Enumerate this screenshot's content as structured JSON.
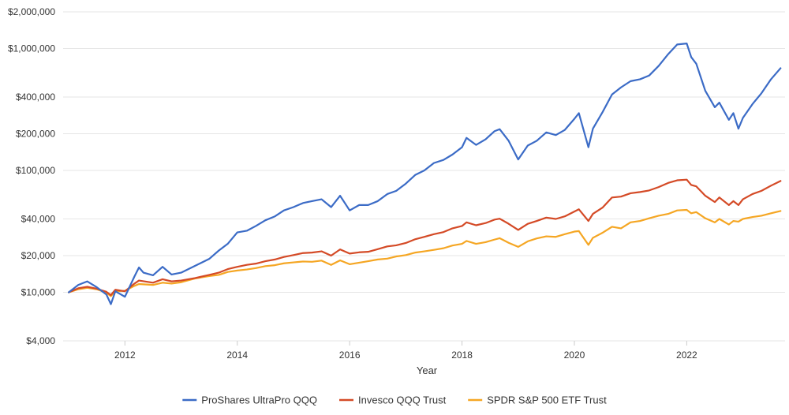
{
  "chart_data": {
    "type": "line",
    "title": "",
    "xlabel": "Year",
    "ylabel": "",
    "y_scale": "log",
    "ylim": [
      4000,
      2000000
    ],
    "xlim": [
      2010.9,
      2023.75
    ],
    "grid": {
      "horizontal": true,
      "vertical": false
    },
    "legend_placement": "bottom",
    "y_ticks": [
      {
        "value": 4000,
        "label": "$4,000"
      },
      {
        "value": 10000,
        "label": "$10,000"
      },
      {
        "value": 20000,
        "label": "$20,000"
      },
      {
        "value": 40000,
        "label": "$40,000"
      },
      {
        "value": 100000,
        "label": "$100,000"
      },
      {
        "value": 200000,
        "label": "$200,000"
      },
      {
        "value": 400000,
        "label": "$400,000"
      },
      {
        "value": 1000000,
        "label": "$1,000,000"
      },
      {
        "value": 2000000,
        "label": "$2,000,000"
      }
    ],
    "x_ticks": [
      {
        "value": 2012,
        "label": "2012"
      },
      {
        "value": 2014,
        "label": "2014"
      },
      {
        "value": 2016,
        "label": "2016"
      },
      {
        "value": 2018,
        "label": "2018"
      },
      {
        "value": 2020,
        "label": "2020"
      },
      {
        "value": 2022,
        "label": "2022"
      }
    ],
    "series": [
      {
        "name": "ProShares UltraPro QQQ",
        "color": "#3b6bc6",
        "points": [
          [
            2011.0,
            10000
          ],
          [
            2011.17,
            11500
          ],
          [
            2011.33,
            12300
          ],
          [
            2011.5,
            11000
          ],
          [
            2011.67,
            9600
          ],
          [
            2011.75,
            8000
          ],
          [
            2011.83,
            10200
          ],
          [
            2012.0,
            9200
          ],
          [
            2012.17,
            13500
          ],
          [
            2012.25,
            16000
          ],
          [
            2012.33,
            14500
          ],
          [
            2012.5,
            13800
          ],
          [
            2012.67,
            16200
          ],
          [
            2012.83,
            14000
          ],
          [
            2013.0,
            14500
          ],
          [
            2013.25,
            16500
          ],
          [
            2013.5,
            18800
          ],
          [
            2013.67,
            22000
          ],
          [
            2013.83,
            25000
          ],
          [
            2014.0,
            31000
          ],
          [
            2014.17,
            32000
          ],
          [
            2014.33,
            35000
          ],
          [
            2014.5,
            39000
          ],
          [
            2014.67,
            42000
          ],
          [
            2014.83,
            47000
          ],
          [
            2015.0,
            50000
          ],
          [
            2015.17,
            54000
          ],
          [
            2015.33,
            56000
          ],
          [
            2015.5,
            58000
          ],
          [
            2015.67,
            50000
          ],
          [
            2015.83,
            62000
          ],
          [
            2016.0,
            47000
          ],
          [
            2016.17,
            52000
          ],
          [
            2016.33,
            52000
          ],
          [
            2016.5,
            56000
          ],
          [
            2016.67,
            64000
          ],
          [
            2016.83,
            68000
          ],
          [
            2017.0,
            78000
          ],
          [
            2017.17,
            92000
          ],
          [
            2017.33,
            100000
          ],
          [
            2017.5,
            115000
          ],
          [
            2017.67,
            122000
          ],
          [
            2017.83,
            135000
          ],
          [
            2018.0,
            155000
          ],
          [
            2018.08,
            185000
          ],
          [
            2018.25,
            162000
          ],
          [
            2018.42,
            180000
          ],
          [
            2018.58,
            210000
          ],
          [
            2018.67,
            218000
          ],
          [
            2018.83,
            175000
          ],
          [
            2019.0,
            123000
          ],
          [
            2019.17,
            160000
          ],
          [
            2019.33,
            175000
          ],
          [
            2019.5,
            205000
          ],
          [
            2019.67,
            195000
          ],
          [
            2019.83,
            215000
          ],
          [
            2020.0,
            265000
          ],
          [
            2020.08,
            295000
          ],
          [
            2020.25,
            155000
          ],
          [
            2020.33,
            220000
          ],
          [
            2020.5,
            300000
          ],
          [
            2020.67,
            420000
          ],
          [
            2020.83,
            480000
          ],
          [
            2021.0,
            540000
          ],
          [
            2021.17,
            560000
          ],
          [
            2021.33,
            600000
          ],
          [
            2021.5,
            720000
          ],
          [
            2021.67,
            900000
          ],
          [
            2021.83,
            1080000
          ],
          [
            2022.0,
            1100000
          ],
          [
            2022.08,
            850000
          ],
          [
            2022.17,
            750000
          ],
          [
            2022.33,
            450000
          ],
          [
            2022.5,
            330000
          ],
          [
            2022.58,
            360000
          ],
          [
            2022.75,
            260000
          ],
          [
            2022.83,
            295000
          ],
          [
            2022.92,
            220000
          ],
          [
            2023.0,
            270000
          ],
          [
            2023.17,
            350000
          ],
          [
            2023.33,
            430000
          ],
          [
            2023.5,
            560000
          ],
          [
            2023.67,
            690000
          ]
        ]
      },
      {
        "name": "Invesco QQQ Trust",
        "color": "#d44a26",
        "points": [
          [
            2011.0,
            10000
          ],
          [
            2011.17,
            10800
          ],
          [
            2011.33,
            11100
          ],
          [
            2011.5,
            10700
          ],
          [
            2011.67,
            10100
          ],
          [
            2011.75,
            9500
          ],
          [
            2011.83,
            10500
          ],
          [
            2012.0,
            10200
          ],
          [
            2012.17,
            11800
          ],
          [
            2012.25,
            12500
          ],
          [
            2012.5,
            12000
          ],
          [
            2012.67,
            12800
          ],
          [
            2012.83,
            12300
          ],
          [
            2013.0,
            12500
          ],
          [
            2013.25,
            13100
          ],
          [
            2013.5,
            13900
          ],
          [
            2013.67,
            14500
          ],
          [
            2013.83,
            15500
          ],
          [
            2014.0,
            16200
          ],
          [
            2014.17,
            16800
          ],
          [
            2014.33,
            17200
          ],
          [
            2014.5,
            18000
          ],
          [
            2014.67,
            18600
          ],
          [
            2014.83,
            19500
          ],
          [
            2015.0,
            20200
          ],
          [
            2015.17,
            21000
          ],
          [
            2015.33,
            21200
          ],
          [
            2015.5,
            21700
          ],
          [
            2015.67,
            20000
          ],
          [
            2015.83,
            22500
          ],
          [
            2016.0,
            20800
          ],
          [
            2016.17,
            21300
          ],
          [
            2016.33,
            21500
          ],
          [
            2016.5,
            22600
          ],
          [
            2016.67,
            23800
          ],
          [
            2016.83,
            24300
          ],
          [
            2017.0,
            25400
          ],
          [
            2017.17,
            27300
          ],
          [
            2017.33,
            28500
          ],
          [
            2017.5,
            30000
          ],
          [
            2017.67,
            31200
          ],
          [
            2017.83,
            33500
          ],
          [
            2018.0,
            35000
          ],
          [
            2018.08,
            37500
          ],
          [
            2018.25,
            35500
          ],
          [
            2018.42,
            37000
          ],
          [
            2018.58,
            39500
          ],
          [
            2018.67,
            40200
          ],
          [
            2018.83,
            36500
          ],
          [
            2019.0,
            32500
          ],
          [
            2019.17,
            36500
          ],
          [
            2019.33,
            38500
          ],
          [
            2019.5,
            41000
          ],
          [
            2019.67,
            40000
          ],
          [
            2019.83,
            42000
          ],
          [
            2020.0,
            46000
          ],
          [
            2020.08,
            48000
          ],
          [
            2020.25,
            38500
          ],
          [
            2020.33,
            44000
          ],
          [
            2020.5,
            49500
          ],
          [
            2020.67,
            60000
          ],
          [
            2020.83,
            61000
          ],
          [
            2021.0,
            65000
          ],
          [
            2021.17,
            66500
          ],
          [
            2021.33,
            68500
          ],
          [
            2021.5,
            73000
          ],
          [
            2021.67,
            79000
          ],
          [
            2021.83,
            83000
          ],
          [
            2022.0,
            84000
          ],
          [
            2022.08,
            76000
          ],
          [
            2022.17,
            74000
          ],
          [
            2022.33,
            62000
          ],
          [
            2022.5,
            55000
          ],
          [
            2022.58,
            60000
          ],
          [
            2022.75,
            52000
          ],
          [
            2022.83,
            56000
          ],
          [
            2022.92,
            52000
          ],
          [
            2023.0,
            58000
          ],
          [
            2023.17,
            64000
          ],
          [
            2023.33,
            68000
          ],
          [
            2023.5,
            75000
          ],
          [
            2023.67,
            82000
          ]
        ]
      },
      {
        "name": "SPDR S&P 500 ETF Trust",
        "color": "#f5a623",
        "points": [
          [
            2011.0,
            10000
          ],
          [
            2011.17,
            10600
          ],
          [
            2011.33,
            10900
          ],
          [
            2011.5,
            10600
          ],
          [
            2011.67,
            9900
          ],
          [
            2011.75,
            9300
          ],
          [
            2011.83,
            10200
          ],
          [
            2012.0,
            10300
          ],
          [
            2012.17,
            11300
          ],
          [
            2012.25,
            11700
          ],
          [
            2012.5,
            11500
          ],
          [
            2012.67,
            12000
          ],
          [
            2012.83,
            11800
          ],
          [
            2013.0,
            12100
          ],
          [
            2013.25,
            13000
          ],
          [
            2013.5,
            13600
          ],
          [
            2013.67,
            13900
          ],
          [
            2013.83,
            14700
          ],
          [
            2014.0,
            15100
          ],
          [
            2014.17,
            15400
          ],
          [
            2014.33,
            15800
          ],
          [
            2014.5,
            16400
          ],
          [
            2014.67,
            16700
          ],
          [
            2014.83,
            17300
          ],
          [
            2015.0,
            17600
          ],
          [
            2015.17,
            17900
          ],
          [
            2015.33,
            17800
          ],
          [
            2015.5,
            18200
          ],
          [
            2015.67,
            16800
          ],
          [
            2015.83,
            18300
          ],
          [
            2016.0,
            17000
          ],
          [
            2016.17,
            17500
          ],
          [
            2016.33,
            18000
          ],
          [
            2016.5,
            18600
          ],
          [
            2016.67,
            18900
          ],
          [
            2016.83,
            19700
          ],
          [
            2017.0,
            20200
          ],
          [
            2017.17,
            21200
          ],
          [
            2017.33,
            21700
          ],
          [
            2017.5,
            22300
          ],
          [
            2017.67,
            23000
          ],
          [
            2017.83,
            24200
          ],
          [
            2018.0,
            25000
          ],
          [
            2018.08,
            26400
          ],
          [
            2018.25,
            25000
          ],
          [
            2018.42,
            25800
          ],
          [
            2018.58,
            27100
          ],
          [
            2018.67,
            27800
          ],
          [
            2018.83,
            25500
          ],
          [
            2019.0,
            23600
          ],
          [
            2019.17,
            26200
          ],
          [
            2019.33,
            27700
          ],
          [
            2019.5,
            28800
          ],
          [
            2019.67,
            28500
          ],
          [
            2019.83,
            30000
          ],
          [
            2020.0,
            31500
          ],
          [
            2020.08,
            31800
          ],
          [
            2020.25,
            24500
          ],
          [
            2020.33,
            28000
          ],
          [
            2020.5,
            30800
          ],
          [
            2020.67,
            34500
          ],
          [
            2020.83,
            33500
          ],
          [
            2021.0,
            37500
          ],
          [
            2021.17,
            38500
          ],
          [
            2021.33,
            40500
          ],
          [
            2021.5,
            42500
          ],
          [
            2021.67,
            44000
          ],
          [
            2021.83,
            47000
          ],
          [
            2022.0,
            47500
          ],
          [
            2022.08,
            44500
          ],
          [
            2022.17,
            45500
          ],
          [
            2022.33,
            40500
          ],
          [
            2022.5,
            37500
          ],
          [
            2022.58,
            40000
          ],
          [
            2022.75,
            36000
          ],
          [
            2022.83,
            38500
          ],
          [
            2022.92,
            38000
          ],
          [
            2023.0,
            40000
          ],
          [
            2023.17,
            41500
          ],
          [
            2023.33,
            42500
          ],
          [
            2023.5,
            44500
          ],
          [
            2023.67,
            46500
          ]
        ]
      }
    ]
  }
}
